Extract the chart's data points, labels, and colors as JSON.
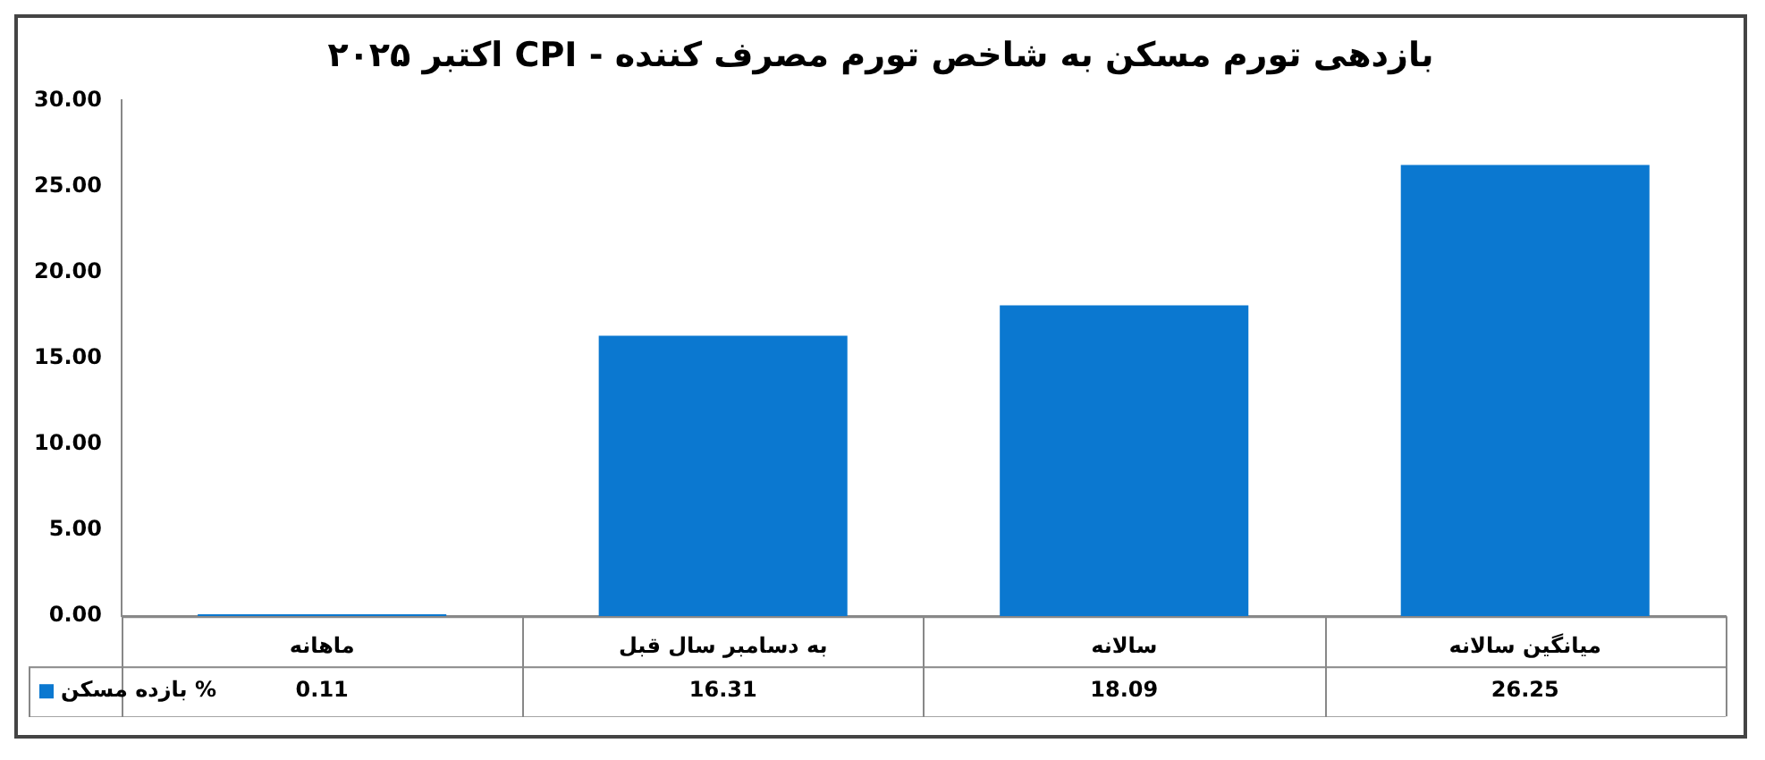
{
  "chart_data": {
    "type": "bar",
    "title": "بازدهی تورم مسکن به شاخص تورم مصرف کننده - CPI  اکتبر ۲۰۲۵",
    "categories": [
      "ماهانه",
      "به دسامبر سال قبل",
      "سالانه",
      "میانگین سالانه"
    ],
    "series": [
      {
        "name": "بازده مسکن %",
        "color": "#0b78d0",
        "values": [
          0.11,
          16.31,
          18.09,
          26.25
        ]
      }
    ],
    "ylim": [
      0,
      30
    ],
    "yticks": [
      {
        "value": 0,
        "label": "0.00"
      },
      {
        "value": 5,
        "label": "5.00"
      },
      {
        "value": 10,
        "label": "10.00"
      },
      {
        "value": 15,
        "label": "15.00"
      },
      {
        "value": 20,
        "label": "20.00"
      },
      {
        "value": 25,
        "label": "25.00"
      },
      {
        "value": 30,
        "label": "30.00"
      }
    ],
    "data_labels": true,
    "legend": "bottom"
  }
}
